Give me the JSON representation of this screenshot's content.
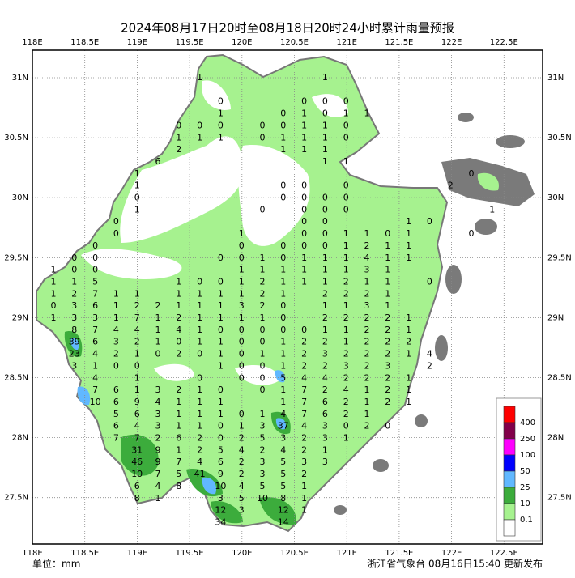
{
  "title": "2024年08月17日20时至08月18日20时24小时累计雨量预报",
  "axes": {
    "lon_labels": [
      "118E",
      "118.5E",
      "119E",
      "119.5E",
      "120E",
      "120.5E",
      "121E",
      "121.5E",
      "122E",
      "122.5E"
    ],
    "lat_labels": [
      "31N",
      "30.5N",
      "30N",
      "29.5N",
      "29N",
      "28.5N",
      "28N",
      "27.5N"
    ]
  },
  "legend": {
    "levels": [
      400,
      250,
      100,
      50,
      25,
      10,
      0.1
    ],
    "colors": [
      "#fe0000",
      "#82004a",
      "#fe00fe",
      "#0000fe",
      "#61b8ff",
      "#3cac3c",
      "#a6f28f",
      "#ffffff"
    ]
  },
  "stations": {
    "rows": [
      [
        null,
        null,
        null,
        null,
        null,
        null,
        null,
        1,
        null,
        null,
        null,
        null,
        null,
        1
      ],
      [],
      [
        null,
        null,
        null,
        null,
        null,
        null,
        null,
        null,
        0,
        null,
        null,
        null,
        0,
        0,
        0
      ],
      [
        null,
        null,
        null,
        null,
        null,
        null,
        null,
        null,
        1,
        null,
        null,
        0,
        1,
        0,
        1,
        1
      ],
      [
        null,
        null,
        null,
        null,
        null,
        null,
        0,
        0,
        0,
        null,
        0,
        0,
        1,
        1,
        0
      ],
      [
        null,
        null,
        null,
        null,
        null,
        null,
        1,
        1,
        1,
        null,
        0,
        1,
        1,
        1,
        0
      ],
      [
        null,
        null,
        null,
        null,
        null,
        null,
        2,
        null,
        null,
        null,
        null,
        1,
        1,
        1
      ],
      [
        null,
        null,
        null,
        null,
        null,
        6,
        null,
        null,
        null,
        null,
        null,
        null,
        null,
        1,
        1
      ],
      [
        null,
        null,
        null,
        null,
        1,
        null,
        null,
        null,
        null,
        null,
        null,
        null,
        null,
        null,
        null,
        null,
        null,
        null,
        null,
        null,
        0
      ],
      [
        null,
        null,
        null,
        null,
        1,
        null,
        null,
        null,
        null,
        null,
        null,
        0,
        0,
        null,
        0,
        null,
        null,
        null,
        null,
        2
      ],
      [
        null,
        null,
        null,
        null,
        0,
        null,
        null,
        null,
        null,
        null,
        null,
        0,
        0,
        0,
        0
      ],
      [
        null,
        null,
        null,
        null,
        1,
        null,
        null,
        null,
        null,
        null,
        0,
        null,
        0,
        0,
        0,
        null,
        null,
        null,
        null,
        null,
        null,
        1
      ],
      [
        null,
        null,
        null,
        0,
        null,
        null,
        null,
        null,
        null,
        null,
        null,
        null,
        0,
        0,
        null,
        null,
        null,
        1,
        0
      ],
      [
        null,
        null,
        null,
        0,
        null,
        null,
        null,
        null,
        null,
        1,
        null,
        null,
        0,
        0,
        1,
        1,
        0,
        1,
        null,
        null,
        0
      ],
      [
        null,
        null,
        0,
        null,
        null,
        null,
        null,
        null,
        null,
        0,
        null,
        0,
        0,
        0,
        1,
        2,
        1,
        1
      ],
      [
        null,
        0,
        0,
        null,
        null,
        null,
        null,
        null,
        0,
        0,
        1,
        0,
        1,
        1,
        1,
        4,
        1,
        1
      ],
      [
        1,
        0,
        0,
        null,
        null,
        null,
        null,
        null,
        null,
        1,
        1,
        1,
        1,
        1,
        1,
        3,
        1
      ],
      [
        1,
        1,
        5,
        null,
        null,
        null,
        1,
        0,
        0,
        1,
        2,
        1,
        1,
        1,
        2,
        1,
        1,
        null,
        0
      ],
      [
        1,
        2,
        7,
        1,
        1,
        null,
        1,
        1,
        1,
        1,
        2,
        1,
        null,
        2,
        2,
        2,
        1
      ],
      [
        0,
        3,
        6,
        1,
        2,
        2,
        1,
        1,
        1,
        3,
        2,
        0,
        null,
        1,
        1,
        3,
        1
      ],
      [
        1,
        3,
        3,
        1,
        7,
        1,
        2,
        1,
        1,
        1,
        1,
        0,
        null,
        2,
        2,
        2,
        2,
        1
      ],
      [
        null,
        8,
        7,
        4,
        4,
        1,
        4,
        1,
        0,
        0,
        0,
        0,
        0,
        1,
        1,
        2,
        2,
        1
      ],
      [
        null,
        39,
        6,
        3,
        2,
        1,
        0,
        1,
        1,
        0,
        0,
        1,
        2,
        2,
        1,
        2,
        2,
        2
      ],
      [
        null,
        23,
        4,
        2,
        1,
        0,
        2,
        0,
        1,
        0,
        1,
        1,
        2,
        3,
        2,
        2,
        2,
        1,
        4
      ],
      [
        null,
        3,
        1,
        0,
        0,
        null,
        null,
        null,
        1,
        0,
        0,
        1,
        2,
        2,
        3,
        2,
        3,
        null,
        2
      ],
      [
        null,
        null,
        4,
        null,
        1,
        null,
        null,
        0,
        null,
        0,
        0,
        5,
        4,
        4,
        2,
        2,
        2,
        1
      ],
      [
        null,
        null,
        7,
        6,
        1,
        3,
        2,
        1,
        0,
        null,
        0,
        1,
        7,
        2,
        4,
        1,
        2,
        1
      ],
      [
        null,
        null,
        10,
        6,
        9,
        4,
        1,
        1,
        1,
        null,
        null,
        1,
        7,
        6,
        2,
        1,
        2,
        1
      ],
      [
        null,
        null,
        null,
        5,
        6,
        3,
        1,
        1,
        1,
        0,
        1,
        4,
        7,
        6,
        2,
        1
      ],
      [
        null,
        null,
        null,
        6,
        4,
        3,
        1,
        1,
        0,
        1,
        3,
        37,
        4,
        3,
        0,
        2,
        0
      ],
      [
        null,
        null,
        null,
        7,
        7,
        2,
        6,
        2,
        0,
        2,
        5,
        3,
        2,
        3,
        1
      ],
      [
        null,
        null,
        null,
        null,
        31,
        9,
        1,
        2,
        5,
        4,
        2,
        4,
        2,
        1
      ],
      [
        null,
        null,
        null,
        null,
        46,
        9,
        7,
        4,
        6,
        2,
        3,
        5,
        3,
        3
      ],
      [
        null,
        null,
        null,
        null,
        10,
        7,
        5,
        41,
        9,
        2,
        3,
        5,
        2
      ],
      [
        null,
        null,
        null,
        null,
        6,
        4,
        8,
        null,
        10,
        4,
        5,
        5,
        1
      ],
      [
        null,
        null,
        null,
        null,
        8,
        1,
        null,
        null,
        3,
        5,
        10,
        8,
        1
      ],
      [
        null,
        null,
        null,
        null,
        null,
        null,
        null,
        null,
        12,
        3,
        null,
        12,
        1
      ],
      [
        null,
        null,
        null,
        null,
        null,
        null,
        null,
        null,
        34,
        null,
        null,
        14
      ]
    ]
  },
  "footer": {
    "unit": "单位：mm",
    "issuer": "浙江省气象台 08月16日15:40 更新发布"
  }
}
